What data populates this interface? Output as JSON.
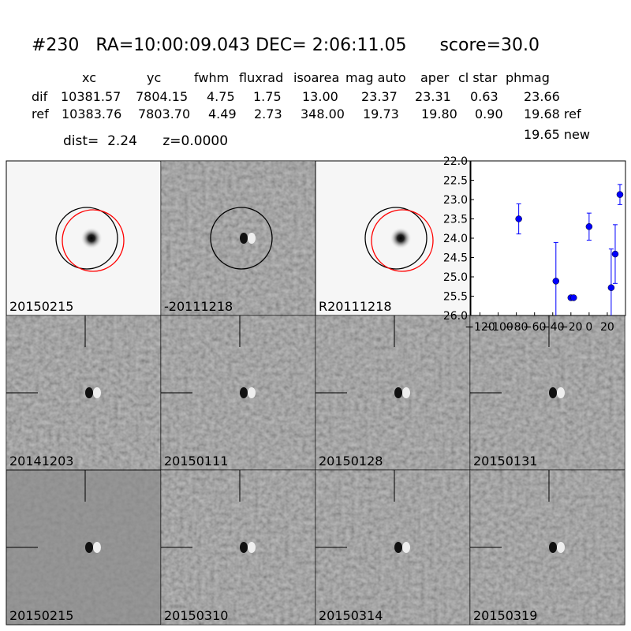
{
  "header": {
    "title": "#230   RA=10:00:09.043 DEC= 2:06:11.05      score=30.0",
    "columns": [
      "xc",
      "yc",
      "fwhm",
      "fluxrad",
      "isoarea",
      "mag auto",
      "aper",
      "cl star",
      "phmag"
    ],
    "rows": [
      {
        "label": "dif",
        "cells": [
          "10381.57",
          "7804.15",
          "4.75",
          "1.75",
          "13.00",
          "23.37",
          "23.31",
          "0.63",
          "23.66"
        ]
      },
      {
        "label": "ref",
        "cells": [
          "10383.76",
          "7803.70",
          "4.49",
          "2.73",
          "348.00",
          "19.73",
          "19.80",
          "0.90",
          "19.68 ref"
        ]
      }
    ],
    "extra": "19.65 new",
    "dist_line": "dist=  2.24      z=0.0000"
  },
  "panels": [
    {
      "label": "20150215",
      "color": "#000000"
    },
    {
      "label": "-20111218",
      "color": "#000000"
    },
    {
      "label": "R20111218",
      "color": "#000000"
    },
    {
      "label": "20141203",
      "color": "#000000"
    },
    {
      "label": "20150111",
      "color": "#000000"
    },
    {
      "label": "20150128",
      "color": "#000000"
    },
    {
      "label": "20150131",
      "color": "#000000"
    },
    {
      "label": "20150215",
      "color": "#ff0000"
    },
    {
      "label": "20150310",
      "color": "#000000"
    },
    {
      "label": "20150314",
      "color": "#000000"
    },
    {
      "label": "20150319",
      "color": "#000000"
    }
  ],
  "chart_data": {
    "type": "errorbar",
    "color": "#0000ff",
    "x": [
      -77.4,
      -36.5,
      -20,
      -17,
      0,
      24.3,
      28.7,
      33.9
    ],
    "values": [
      23.5,
      25.11,
      25.54,
      25.54,
      23.7,
      25.28,
      24.41,
      22.87
    ],
    "errors": [
      0.39,
      1.0,
      0.05,
      0.05,
      0.35,
      1.0,
      0.76,
      0.26
    ],
    "xlim": [
      -130,
      40
    ],
    "xticks": [
      {
        "value": -120,
        "label": "−120"
      },
      {
        "value": -100,
        "label": "−100"
      },
      {
        "value": -80,
        "label": "−80"
      },
      {
        "value": -60,
        "label": "−60"
      },
      {
        "value": -40,
        "label": "−40"
      },
      {
        "value": -20,
        "label": "−20"
      },
      0,
      20
    ],
    "ylim": [
      26.0,
      22.0
    ],
    "yticks": [
      {
        "value": 22.0,
        "label": "22.0"
      },
      {
        "value": 22.5,
        "label": "22.5"
      },
      {
        "value": 23.0,
        "label": "23.0"
      },
      {
        "value": 23.5,
        "label": "23.5"
      },
      {
        "value": 24.0,
        "label": "24.0"
      },
      {
        "value": 24.5,
        "label": "24.5"
      },
      {
        "value": 25.0,
        "label": "25.0"
      },
      {
        "value": 25.5,
        "label": "25.5"
      },
      {
        "value": 26.0,
        "label": "26.0"
      }
    ]
  }
}
